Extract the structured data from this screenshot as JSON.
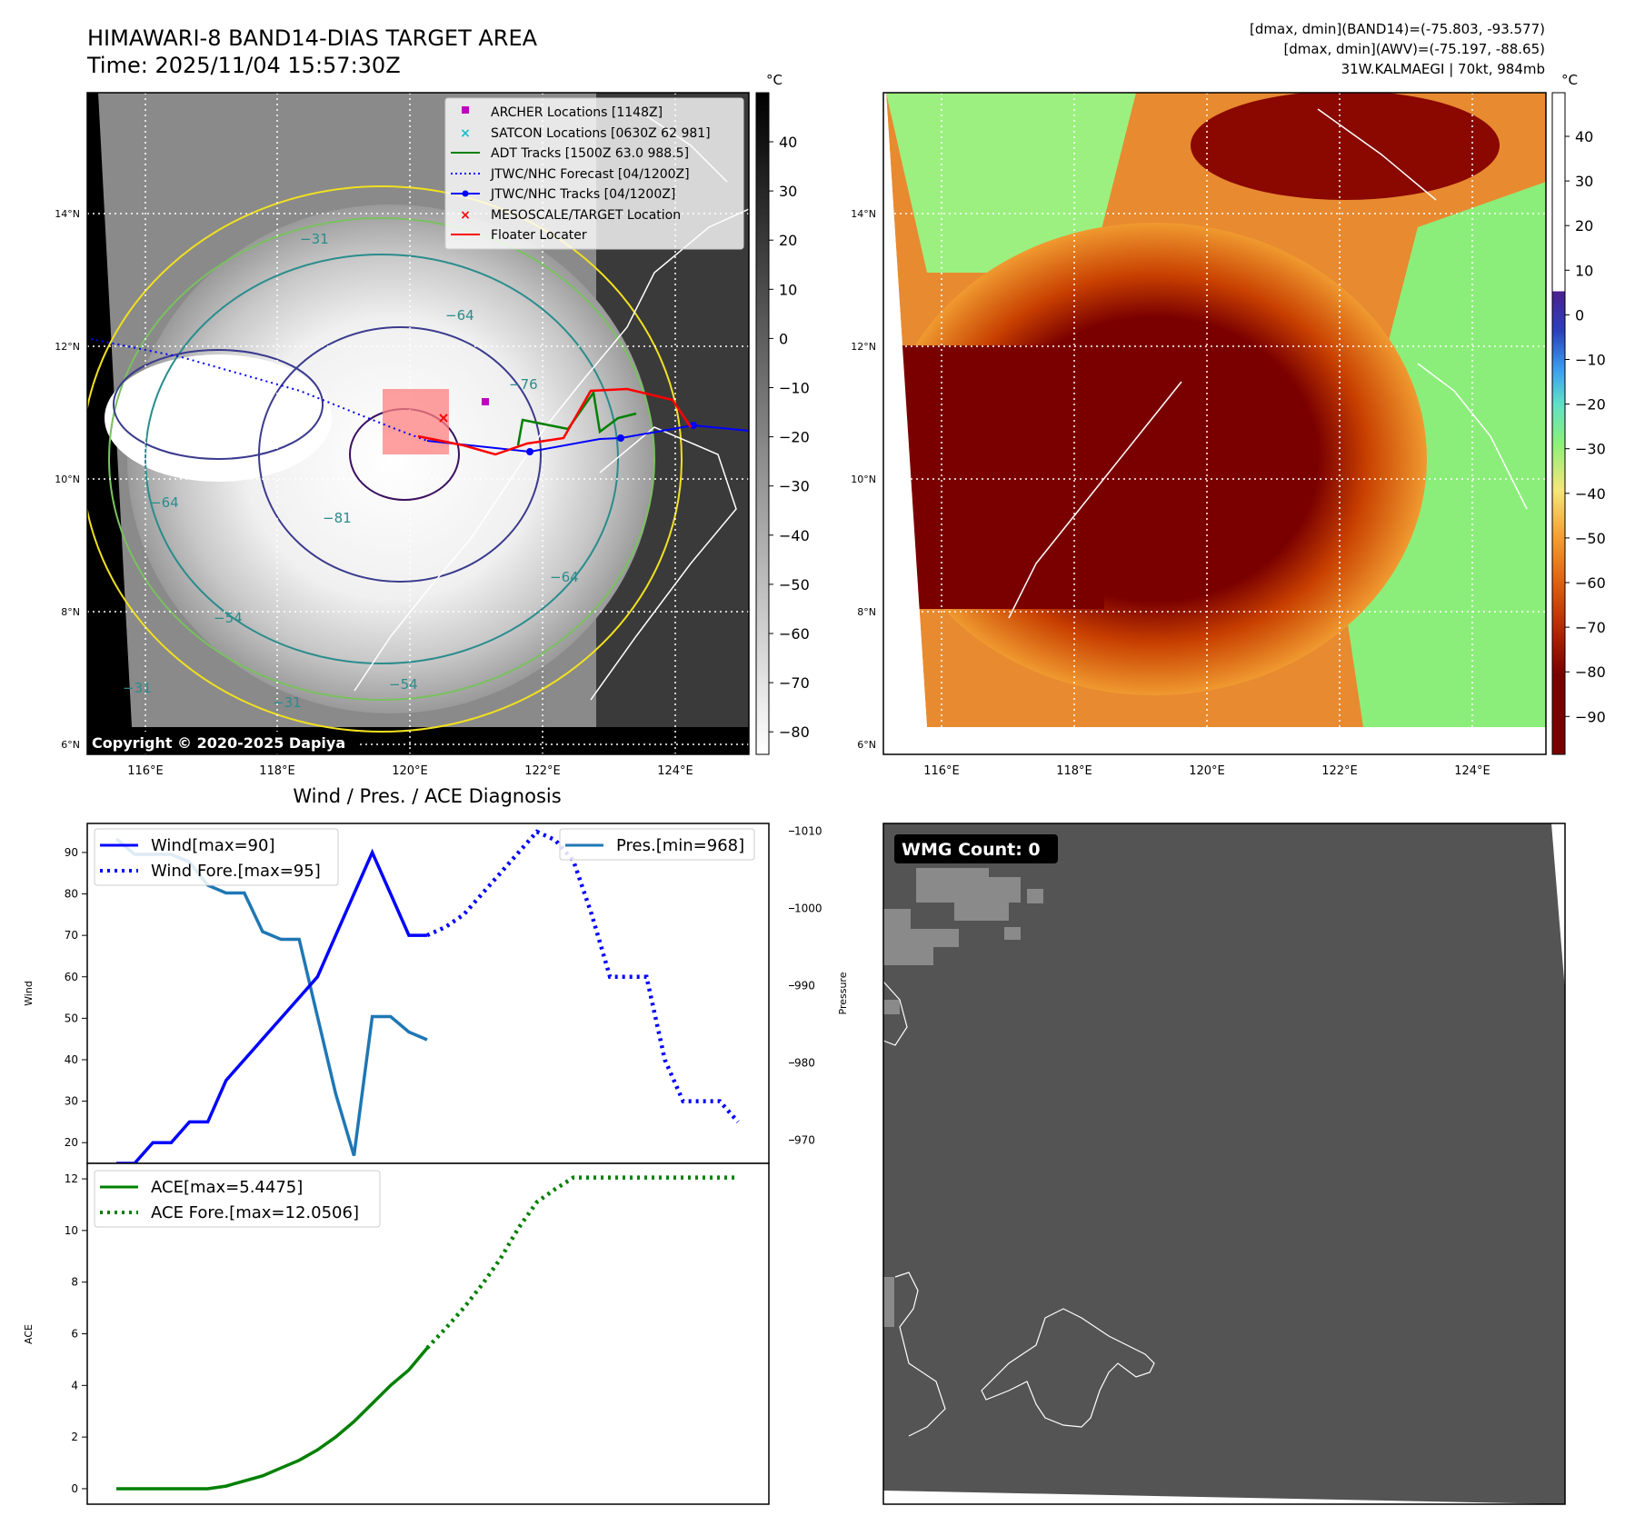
{
  "header": {
    "title": "HIMAWARI-8 BAND14-DIAS TARGET AREA",
    "time": "Time: 2025/11/04 15:57:30Z",
    "stats_band14": "[dmax, dmin](BAND14)=(-75.803, -93.577)",
    "stats_awv": "[dmax, dmin](AWV)=(-75.197, -88.65)",
    "storm": "31W.KALMAEGI | 70kt, 984mb"
  },
  "colors": {
    "wind": "#0000ff",
    "pressure": "#1f77b4",
    "ace": "#008000",
    "archer": "#bf00bf",
    "satcon": "#17becf",
    "adt": "#008000",
    "jtwc": "#0000ff",
    "target": "#ff0000",
    "floater": "#ff0000",
    "wmg_bg": "#545454",
    "coast": "#ffffff"
  },
  "ir_panel": {
    "cbar_unit": "°C",
    "cbar_ticks": [
      "40",
      "30",
      "20",
      "10",
      "0",
      "−10",
      "−20",
      "−30",
      "−40",
      "−50",
      "−60",
      "−70",
      "−80"
    ],
    "lat_ticks": [
      "14°N",
      "12°N",
      "10°N",
      "8°N",
      "6°N"
    ],
    "lon_ticks": [
      "116°E",
      "118°E",
      "120°E",
      "122°E",
      "124°E"
    ],
    "copyright": "Copyright © 2020-2025 Dapiya",
    "contour_labels": [
      "−31",
      "−64",
      "−76",
      "−64",
      "−81",
      "−54",
      "−54",
      "−31",
      "−31",
      "−64"
    ],
    "legend": [
      {
        "label": "ARCHER Locations [1148Z]",
        "icon": "square-marker-icon"
      },
      {
        "label": "SATCON Locations [0630Z 62 981]",
        "icon": "x-marker-icon"
      },
      {
        "label": "ADT Tracks [1500Z 63.0 988.5]",
        "icon": "solid-line-icon"
      },
      {
        "label": "JTWC/NHC Forecast [04/1200Z]",
        "icon": "dotted-line-icon"
      },
      {
        "label": "JTWC/NHC Tracks [04/1200Z]",
        "icon": "line-dot-icon"
      },
      {
        "label": "MESOSCALE/TARGET Location",
        "icon": "x-marker-icon"
      },
      {
        "label": "Floater Locater",
        "icon": "solid-line-icon"
      }
    ]
  },
  "awv_panel": {
    "cbar_unit": "°C",
    "cbar_ticks": [
      "40",
      "30",
      "20",
      "10",
      "0",
      "−10",
      "−20",
      "−30",
      "−40",
      "−50",
      "−60",
      "−70",
      "−80",
      "−90"
    ],
    "lat_ticks": [
      "14°N",
      "12°N",
      "10°N",
      "8°N",
      "6°N"
    ],
    "lon_ticks": [
      "116°E",
      "118°E",
      "120°E",
      "122°E",
      "124°E"
    ]
  },
  "wmg_panel": {
    "badge": "WMG Count: 0"
  },
  "chart_data": [
    {
      "type": "line",
      "title": "Wind / Pres. / ACE Diagnosis",
      "ylabel": "Wind",
      "y2label": "Pressure",
      "ylim": [
        15,
        97
      ],
      "y2lim": [
        967,
        1011
      ],
      "yticks": [
        20,
        30,
        40,
        50,
        60,
        70,
        80,
        90
      ],
      "y2ticks": [
        970,
        980,
        990,
        1000,
        1010
      ],
      "series": [
        {
          "name": "Wind[max=90]",
          "style": "solid",
          "axis": "left",
          "x": [
            0,
            1,
            2,
            3,
            4,
            5,
            6,
            7,
            8,
            9,
            10,
            11,
            12,
            13,
            14,
            15,
            16,
            17
          ],
          "values": [
            15,
            15,
            20,
            20,
            25,
            25,
            35,
            40,
            45,
            50,
            55,
            60,
            70,
            80,
            90,
            80,
            70,
            70
          ]
        },
        {
          "name": "Wind Fore.[max=95]",
          "style": "dotted",
          "axis": "left",
          "x": [
            17,
            18,
            19,
            20,
            21,
            22,
            23,
            24,
            25,
            26,
            27,
            28,
            29,
            30,
            31,
            32,
            33,
            34
          ],
          "values": [
            70,
            72,
            75,
            80,
            85,
            90,
            95,
            93,
            88,
            75,
            60,
            60,
            60,
            40,
            30,
            30,
            30,
            25
          ]
        },
        {
          "name": "Pres.[min=968]",
          "style": "solid",
          "axis": "right",
          "x": [
            0,
            1,
            2,
            3,
            4,
            5,
            6,
            7,
            8,
            9,
            10,
            11,
            12,
            13,
            14,
            15,
            16,
            17
          ],
          "values": [
            1009,
            1007,
            1007,
            1007,
            1006,
            1003,
            1002,
            1002,
            997,
            996,
            996,
            986,
            976,
            968,
            986,
            986,
            984,
            983
          ]
        }
      ]
    },
    {
      "type": "line",
      "ylabel": "ACE",
      "ylim": [
        -0.6,
        12.6
      ],
      "yticks": [
        0,
        2,
        4,
        6,
        8,
        10,
        12
      ],
      "series": [
        {
          "name": "ACE[max=5.4475]",
          "style": "solid",
          "x": [
            0,
            1,
            2,
            3,
            4,
            5,
            6,
            7,
            8,
            9,
            10,
            11,
            12,
            13,
            14,
            15,
            16,
            17
          ],
          "values": [
            0,
            0,
            0,
            0,
            0,
            0,
            0.1,
            0.3,
            0.5,
            0.8,
            1.1,
            1.5,
            2.0,
            2.6,
            3.3,
            4.0,
            4.6,
            5.4475
          ]
        },
        {
          "name": "ACE Fore.[max=12.0506]",
          "style": "dotted",
          "x": [
            17,
            18,
            19,
            20,
            21,
            22,
            23,
            24,
            25,
            26,
            27,
            28,
            29,
            30,
            31,
            32,
            33,
            34
          ],
          "values": [
            5.4475,
            6.2,
            7.0,
            7.9,
            8.9,
            10.1,
            11.1,
            11.6,
            12.0506,
            12.05,
            12.05,
            12.05,
            12.05,
            12.05,
            12.05,
            12.05,
            12.05,
            12.05
          ]
        }
      ]
    }
  ]
}
